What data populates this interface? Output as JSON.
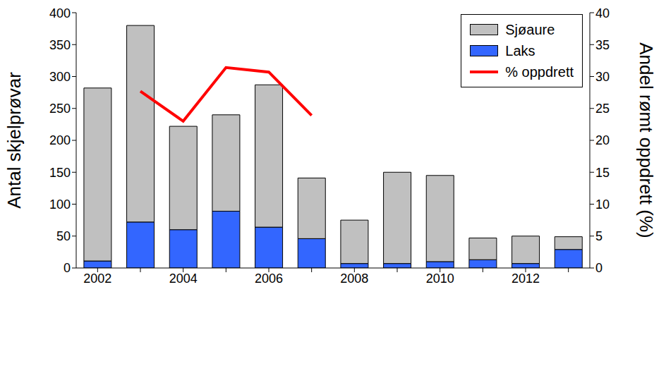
{
  "chart_data": {
    "type": "bar",
    "stacked": true,
    "categories": [
      "2002",
      null,
      "2004",
      null,
      "2006",
      null,
      "2008",
      null,
      "2010",
      null,
      "2012",
      null
    ],
    "y_label": "Antal skjelprøvar",
    "y2_label": "Andel rømt oppdrett (%)",
    "ylim": [
      0,
      400
    ],
    "yticks": [
      0,
      50,
      100,
      150,
      200,
      250,
      300,
      350,
      400
    ],
    "y2lim": [
      0,
      40
    ],
    "y2ticks": [
      0,
      5,
      10,
      15,
      20,
      25,
      30,
      35,
      40
    ],
    "grid": false,
    "legend": "upper right",
    "series": [
      {
        "name": "Sjøaure",
        "type": "bar",
        "color": "#c0c0c0",
        "values": [
          271,
          308,
          162,
          151,
          223,
          95,
          68,
          143,
          135,
          34,
          43,
          20
        ]
      },
      {
        "name": "Laks",
        "type": "bar",
        "color": "#3366ff",
        "values": [
          11,
          72,
          60,
          89,
          64,
          46,
          7,
          7,
          10,
          13,
          7,
          29
        ]
      },
      {
        "name": "% oppdrett",
        "type": "line",
        "axis": "y2",
        "color": "#ff0000",
        "values": [
          null,
          27.7,
          23,
          31.4,
          30.7,
          23.9,
          null,
          null,
          null,
          null,
          null,
          null
        ]
      }
    ]
  }
}
